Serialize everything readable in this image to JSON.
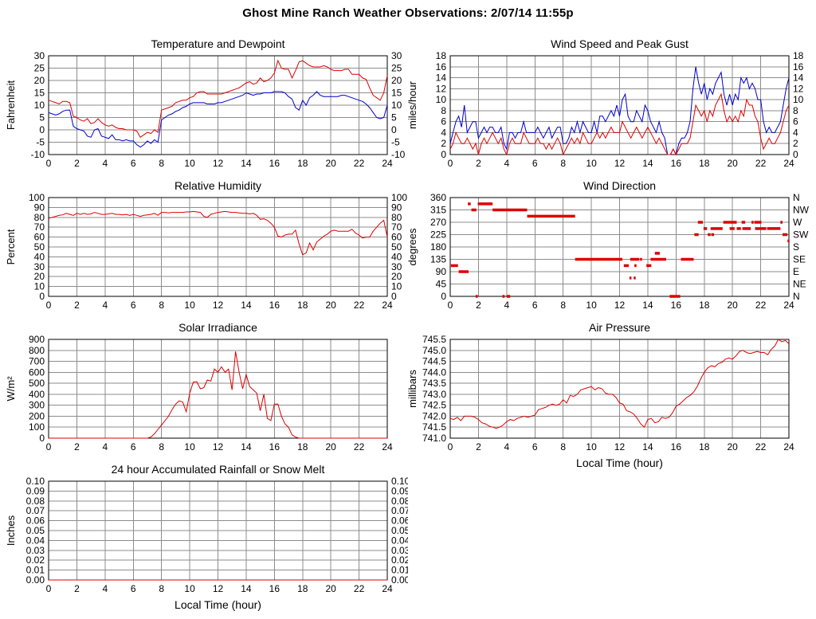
{
  "page_title": "Ghost Mine Ranch Weather Observations: 2/07/14 11:55p",
  "colors": {
    "red": "#dd0000",
    "blue": "#0000cc",
    "grid": "#8c8c8c",
    "frame": "#000000",
    "background": "#ffffff"
  },
  "x_axis": {
    "label": "Local Time (hour)",
    "min": 0,
    "max": 24,
    "tick_step": 2
  },
  "chart_data": [
    {
      "id": "temperature-dewpoint",
      "type": "line",
      "title": "Temperature and Dewpoint",
      "ylabel": "Fahrenheit",
      "xlabel": "",
      "xlim": [
        0,
        24
      ],
      "xtick_step": 2,
      "ylim": [
        -10,
        30
      ],
      "ytick_step": 5,
      "ytick_decimals": 0,
      "mirror_right_labels": true,
      "grid": true,
      "series": [
        {
          "name": "temperature",
          "color_key": "red",
          "x_start": 0,
          "x_step": 0.25,
          "values": [
            12,
            11.5,
            11,
            10.5,
            11.5,
            11.5,
            11,
            5.5,
            5,
            4,
            3.5,
            4.5,
            2.5,
            3,
            4.5,
            3,
            2,
            1.5,
            2,
            1,
            0.5,
            0.5,
            0,
            0,
            0,
            -0.5,
            -3,
            -2,
            -1,
            -1.5,
            0,
            -1,
            8,
            8.5,
            9,
            9.5,
            11,
            11.5,
            12,
            12,
            13,
            13.5,
            15,
            15.5,
            15.5,
            14.5,
            14.5,
            14.5,
            14.5,
            14.5,
            15,
            15.5,
            16,
            16.5,
            17,
            18,
            19,
            19.5,
            18.5,
            19,
            21,
            19.5,
            20,
            21,
            23,
            28,
            25,
            24.5,
            24.5,
            21,
            24,
            27.5,
            28,
            27,
            26,
            25.5,
            25.5,
            25.5,
            26,
            25.5,
            24.5,
            24,
            24,
            24,
            24.5,
            24.5,
            22.5,
            22.5,
            22.5,
            21,
            20.5,
            17,
            14,
            13,
            12,
            15,
            22
          ]
        },
        {
          "name": "dewpoint",
          "color_key": "blue",
          "x_start": 0,
          "x_step": 0.25,
          "values": [
            7,
            6.5,
            6,
            6.5,
            7.5,
            8,
            8,
            1.5,
            0.5,
            0,
            -0.5,
            -2.5,
            -3,
            0,
            0.5,
            -2.5,
            -3,
            -3.5,
            -2,
            -4,
            -4,
            -4.5,
            -4,
            -4.5,
            -4.5,
            -6,
            -7,
            -6,
            -4.5,
            -5.5,
            -4,
            -5,
            4,
            5,
            6,
            6.5,
            7.5,
            8,
            9,
            9.5,
            10.5,
            11,
            11,
            11,
            11,
            10.5,
            10.5,
            10.5,
            11,
            11,
            11.5,
            12,
            12.5,
            13,
            13.5,
            14,
            15,
            14.5,
            14,
            14.5,
            14.5,
            15,
            15,
            15,
            15.5,
            15.5,
            15.5,
            15,
            13.5,
            12.5,
            9,
            8,
            12,
            10,
            13,
            14,
            15.5,
            14,
            13.5,
            13.5,
            13.5,
            13.5,
            13.5,
            14,
            14,
            13.5,
            13,
            12.5,
            12,
            11.5,
            10.5,
            9,
            7,
            5,
            4.5,
            5,
            10
          ]
        }
      ]
    },
    {
      "id": "wind-speed-gust",
      "type": "line",
      "title": "Wind Speed and Peak Gust",
      "ylabel": "miles/hour",
      "xlabel": "",
      "xlim": [
        0,
        24
      ],
      "xtick_step": 2,
      "ylim": [
        0,
        18
      ],
      "ytick_step": 2,
      "ytick_decimals": 0,
      "mirror_right_labels": true,
      "grid": true,
      "series": [
        {
          "name": "peak-gust",
          "color_key": "blue",
          "x_start": 0,
          "x_step": 0.2,
          "values": [
            2,
            4,
            6,
            7,
            5,
            9,
            4,
            5,
            6,
            6,
            3,
            4,
            5,
            4,
            5,
            5,
            4,
            4,
            5,
            2,
            1,
            4,
            4,
            3,
            4,
            4,
            6,
            4,
            4,
            4,
            4,
            5,
            4,
            3,
            4,
            5,
            3,
            4,
            5,
            5,
            2,
            2,
            3,
            5,
            4,
            6,
            4,
            6,
            5,
            4,
            4,
            6,
            4,
            7,
            7,
            6,
            7,
            8,
            7,
            9,
            7,
            10,
            11,
            7,
            6,
            6,
            8,
            7,
            6,
            9,
            8,
            6,
            5,
            4,
            6,
            4,
            3,
            0,
            0,
            1,
            0,
            2,
            3,
            3,
            4,
            6,
            12,
            16,
            13,
            11,
            13,
            10,
            12,
            11,
            13,
            14,
            15,
            11,
            9,
            11,
            9,
            11,
            10,
            14,
            13,
            14,
            12,
            13,
            12,
            10,
            10,
            6,
            4,
            5,
            4,
            4,
            5,
            6,
            9,
            12,
            14
          ]
        },
        {
          "name": "wind-speed",
          "color_key": "red",
          "x_start": 0,
          "x_step": 0.2,
          "values": [
            1,
            2,
            4,
            3,
            2,
            2,
            3,
            2,
            1,
            2,
            0,
            2,
            3,
            2,
            3,
            4,
            3,
            2,
            3,
            1,
            0,
            2,
            3,
            2,
            2,
            2,
            4,
            3,
            2,
            2,
            2,
            3,
            2,
            2,
            1,
            2,
            1,
            2,
            3,
            2,
            0,
            1,
            2,
            3,
            2,
            3,
            2,
            4,
            3,
            2,
            2,
            3,
            4,
            3,
            4,
            3,
            4,
            5,
            4,
            4,
            4,
            6,
            5,
            4,
            3,
            4,
            5,
            4,
            3,
            4,
            5,
            4,
            3,
            2,
            3,
            2,
            1,
            0,
            0,
            1,
            0,
            1,
            2,
            2,
            2,
            3,
            6,
            9,
            8,
            7,
            8,
            6,
            8,
            7,
            9,
            10,
            11,
            8,
            6,
            7,
            6,
            7,
            6,
            8,
            7,
            10,
            9,
            9,
            7,
            6,
            3,
            1,
            2,
            3,
            2,
            2,
            3,
            4,
            6,
            8,
            9
          ]
        }
      ]
    },
    {
      "id": "relative-humidity",
      "type": "line",
      "title": "Relative Humidity",
      "ylabel": "Percent",
      "xlabel": "",
      "xlim": [
        0,
        24
      ],
      "xtick_step": 2,
      "ylim": [
        0,
        100
      ],
      "ytick_step": 10,
      "ytick_decimals": 0,
      "mirror_right_labels": true,
      "grid": true,
      "series": [
        {
          "name": "humidity",
          "color_key": "red",
          "x_start": 0,
          "x_step": 0.25,
          "values": [
            79,
            80,
            81,
            82,
            82.5,
            84,
            83,
            82,
            84,
            83,
            84,
            83,
            83.5,
            85,
            84,
            83,
            83,
            83.5,
            84,
            83,
            83,
            82.5,
            83,
            82,
            83,
            82,
            81,
            82,
            82.5,
            83,
            84,
            82,
            85,
            85,
            84.5,
            85,
            85,
            85,
            85,
            85.5,
            85.5,
            86,
            85.5,
            85,
            81,
            80,
            83,
            84,
            85,
            85.5,
            86,
            85.5,
            85,
            85,
            84.5,
            84,
            84,
            83.5,
            84,
            82,
            78,
            78.5,
            77,
            74,
            70,
            61,
            60,
            62,
            63,
            63,
            67,
            53,
            42,
            44,
            54,
            47,
            55,
            58,
            61,
            63,
            66,
            67,
            66,
            66,
            66,
            66,
            68,
            64,
            62,
            59,
            60,
            60,
            66,
            70,
            74,
            77,
            60
          ]
        }
      ]
    },
    {
      "id": "wind-direction",
      "type": "segments",
      "title": "Wind Direction",
      "ylabel": "degrees",
      "xlabel": "",
      "xlim": [
        0,
        24
      ],
      "xtick_step": 2,
      "ylim": [
        0,
        360
      ],
      "ytick_step": 45,
      "ytick_decimals": 0,
      "mirror_right_labels": false,
      "grid": true,
      "right_axis_labels": [
        "N",
        "NE",
        "E",
        "SE",
        "S",
        "SW",
        "W",
        "NW",
        "N"
      ],
      "segment_color_key": "red",
      "segments": [
        [
          0.05,
          0.55,
          112
        ],
        [
          0.6,
          1.3,
          90
        ],
        [
          1.25,
          1.45,
          337
        ],
        [
          1.5,
          1.85,
          315
        ],
        [
          1.8,
          1.95,
          0
        ],
        [
          1.95,
          3.0,
          337
        ],
        [
          3.0,
          5.45,
          315
        ],
        [
          3.7,
          3.85,
          0
        ],
        [
          4.0,
          4.25,
          0
        ],
        [
          5.45,
          8.85,
          292
        ],
        [
          8.85,
          12.2,
          135
        ],
        [
          12.3,
          12.65,
          112
        ],
        [
          12.7,
          12.8,
          67
        ],
        [
          12.75,
          13.4,
          135
        ],
        [
          13.0,
          13.1,
          67
        ],
        [
          13.05,
          13.2,
          112
        ],
        [
          13.45,
          13.55,
          135
        ],
        [
          13.9,
          14.25,
          112
        ],
        [
          14.2,
          15.3,
          135
        ],
        [
          14.5,
          14.85,
          157
        ],
        [
          15.55,
          16.3,
          0
        ],
        [
          16.35,
          17.25,
          135
        ],
        [
          17.3,
          17.6,
          225
        ],
        [
          17.55,
          17.9,
          270
        ],
        [
          17.95,
          18.2,
          247
        ],
        [
          18.25,
          18.45,
          225
        ],
        [
          18.5,
          18.7,
          225
        ],
        [
          18.45,
          19.3,
          247
        ],
        [
          19.35,
          20.3,
          270
        ],
        [
          19.8,
          20.15,
          247
        ],
        [
          20.3,
          20.6,
          247
        ],
        [
          20.65,
          20.9,
          270
        ],
        [
          20.7,
          21.3,
          247
        ],
        [
          21.35,
          21.5,
          270
        ],
        [
          21.55,
          22.05,
          270
        ],
        [
          21.6,
          22.4,
          247
        ],
        [
          22.45,
          23.4,
          247
        ],
        [
          23.4,
          23.55,
          270
        ],
        [
          23.55,
          23.9,
          225
        ],
        [
          23.9,
          24.0,
          202
        ]
      ]
    },
    {
      "id": "solar-irradiance",
      "type": "line",
      "title": "Solar Irradiance",
      "ylabel": "W/m²",
      "xlabel": "",
      "xlim": [
        0,
        24
      ],
      "xtick_step": 2,
      "ylim": [
        0,
        900
      ],
      "ytick_step": 100,
      "ytick_decimals": 0,
      "mirror_right_labels": false,
      "grid": true,
      "series": [
        {
          "name": "solar",
          "color_key": "red",
          "x_start": 0,
          "x_step": 0.25,
          "values": [
            0,
            0,
            0,
            0,
            0,
            0,
            0,
            0,
            0,
            0,
            0,
            0,
            0,
            0,
            0,
            0,
            0,
            0,
            0,
            0,
            0,
            0,
            0,
            0,
            0,
            0,
            0,
            0,
            0,
            10,
            40,
            80,
            120,
            160,
            200,
            260,
            310,
            340,
            330,
            240,
            410,
            510,
            515,
            450,
            460,
            530,
            520,
            630,
            600,
            650,
            600,
            630,
            440,
            790,
            600,
            450,
            580,
            470,
            440,
            410,
            250,
            400,
            180,
            160,
            310,
            310,
            200,
            130,
            100,
            30,
            10,
            0,
            0,
            0,
            0,
            0,
            0,
            0,
            0,
            0,
            0,
            0,
            0,
            0,
            0,
            0,
            0,
            0,
            0,
            0,
            0,
            0,
            0,
            0,
            0,
            0,
            0
          ]
        }
      ]
    },
    {
      "id": "air-pressure",
      "type": "line",
      "title": "Air Pressure",
      "ylabel": "millibars",
      "xlabel": "Local Time (hour)",
      "xlim": [
        0,
        24
      ],
      "xtick_step": 2,
      "ylim": [
        741.0,
        745.5
      ],
      "ytick_step": 0.5,
      "ytick_decimals": 1,
      "mirror_right_labels": false,
      "grid": true,
      "series": [
        {
          "name": "pressure",
          "color_key": "red",
          "x_start": 0,
          "x_step": 0.25,
          "values": [
            741.9,
            741.85,
            741.95,
            741.8,
            742.0,
            742.0,
            742.0,
            741.95,
            741.85,
            741.7,
            741.65,
            741.55,
            741.5,
            741.45,
            741.5,
            741.6,
            741.75,
            741.85,
            741.8,
            741.9,
            741.95,
            742.0,
            741.95,
            742.0,
            742.05,
            742.3,
            742.35,
            742.4,
            742.5,
            742.55,
            742.5,
            742.55,
            742.75,
            742.6,
            742.95,
            742.9,
            743.0,
            743.2,
            743.25,
            743.3,
            743.35,
            743.2,
            743.3,
            743.25,
            743.05,
            743.0,
            743.0,
            742.85,
            742.6,
            742.55,
            742.25,
            742.2,
            742.1,
            741.9,
            741.65,
            741.5,
            741.85,
            741.9,
            741.7,
            741.75,
            741.95,
            741.9,
            741.95,
            742.15,
            742.45,
            742.55,
            742.7,
            742.85,
            742.95,
            743.1,
            743.35,
            743.7,
            744.0,
            744.2,
            744.3,
            744.25,
            744.4,
            744.45,
            744.6,
            744.65,
            744.6,
            744.75,
            744.95,
            745.0,
            744.9,
            744.85,
            744.9,
            744.95,
            744.9,
            744.9,
            744.8,
            745.05,
            745.2,
            745.5,
            745.4,
            745.45,
            745.3
          ]
        }
      ]
    },
    {
      "id": "rainfall",
      "type": "line",
      "title": "24 hour Accumulated Rainfall or Snow Melt",
      "ylabel": "Inches",
      "xlabel": "Local Time (hour)",
      "xlim": [
        0,
        24
      ],
      "xtick_step": 2,
      "ylim": [
        0,
        0.1
      ],
      "ytick_step": 0.01,
      "ytick_decimals": 2,
      "mirror_right_labels": true,
      "grid": true,
      "series": [
        {
          "name": "rainfall",
          "color_key": "red",
          "x_start": 0,
          "x_step": 12,
          "values": [
            0,
            0,
            0
          ]
        }
      ]
    }
  ]
}
